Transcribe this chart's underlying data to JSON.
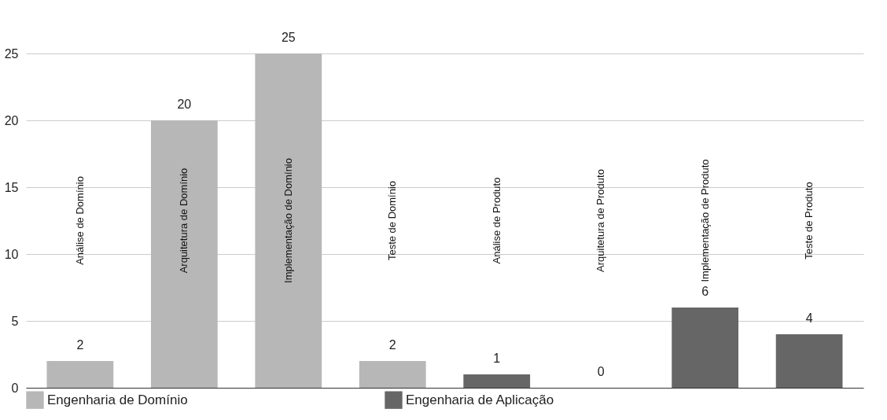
{
  "chart_data": {
    "type": "bar",
    "categories": [
      "Análise de Domínio",
      "Arquitetura de Domínio",
      "Implementação de Domínio",
      "Teste de Domínio",
      "Análise de Produto",
      "Arquitetura de Produto",
      "Implementação de Produto",
      "Teste de Produto"
    ],
    "series": [
      {
        "name": "Engenharia de Domínio",
        "color": "#b7b7b7",
        "values": [
          2,
          20,
          25,
          2,
          null,
          null,
          null,
          null
        ]
      },
      {
        "name": "Engenharia de Aplicação",
        "color": "#666666",
        "values": [
          null,
          null,
          null,
          null,
          1,
          0,
          6,
          4
        ]
      }
    ],
    "ylim": [
      0,
      25
    ],
    "yticks": [
      0,
      5,
      10,
      15,
      20,
      25
    ],
    "grid": "y",
    "legend": "bottom",
    "data_labels": true
  }
}
